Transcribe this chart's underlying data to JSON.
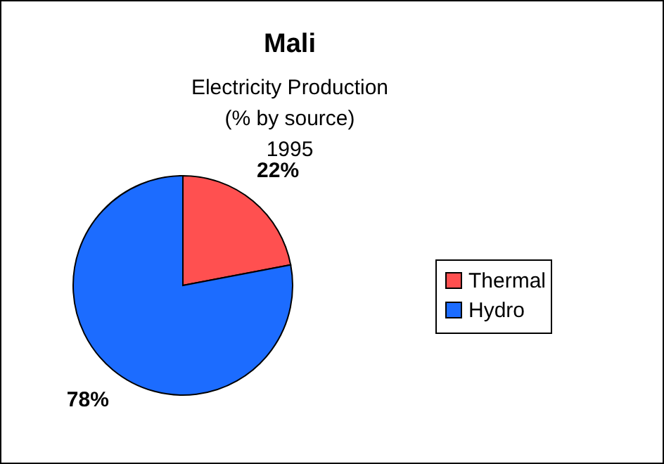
{
  "chart_data": {
    "type": "pie",
    "title": "Mali",
    "subtitle": "Electricity Production\n(% by source)\n1995",
    "categories": [
      "Thermal",
      "Hydro"
    ],
    "values": [
      22,
      78
    ],
    "colors": [
      "#ff5050",
      "#1c6cff"
    ],
    "value_labels": [
      "22%",
      "78%"
    ],
    "legend": "right"
  }
}
